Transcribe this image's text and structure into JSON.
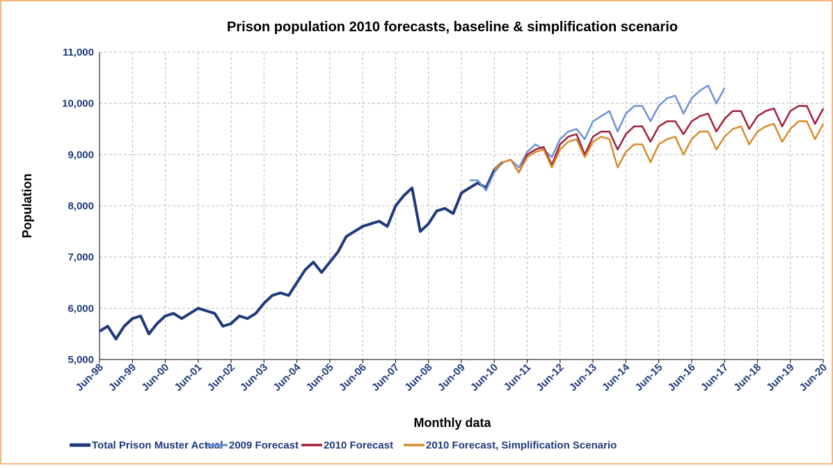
{
  "chart_data": {
    "type": "line",
    "title": "Prison population 2010 forecasts, baseline &  simplification scenario",
    "x_label": "Monthly data",
    "y_label": "Population",
    "categories": [
      "Jun-98",
      null,
      null,
      null,
      "Jun-99",
      null,
      null,
      null,
      "Jun-00",
      null,
      null,
      null,
      "Jun-01",
      null,
      null,
      null,
      "Jun-02",
      null,
      null,
      null,
      "Jun-03",
      null,
      null,
      null,
      "Jun-04",
      null,
      null,
      null,
      "Jun-05",
      null,
      null,
      null,
      "Jun-06",
      null,
      null,
      null,
      "Jun-07",
      null,
      null,
      null,
      "Jun-08",
      null,
      null,
      null,
      "Jun-09",
      null,
      null,
      null,
      "Jun-10",
      null,
      null,
      null,
      "Jun-11",
      null,
      null,
      null,
      "Jun-12",
      null,
      null,
      null,
      "Jun-13",
      null,
      null,
      null,
      "Jun-14",
      null,
      null,
      null,
      "Jun-15",
      null,
      null,
      null,
      "Jun-16",
      null,
      null,
      null,
      "Jun-17",
      null,
      null,
      null,
      "Jun-18",
      null,
      null,
      null,
      "Jun-19",
      null,
      null,
      null,
      "Jun-20"
    ],
    "series": [
      {
        "name": "Total Prison Muster Actual",
        "color": "#1f3a7a",
        "width": 4,
        "values": [
          5550,
          5650,
          5400,
          5650,
          5800,
          5850,
          5500,
          5700,
          5850,
          5900,
          5800,
          5900,
          6000,
          5950,
          5900,
          5650,
          5700,
          5850,
          5800,
          5900,
          6100,
          6250,
          6300,
          6250,
          6500,
          6750,
          6900,
          6700,
          6900,
          7100,
          7400,
          7500,
          7600,
          7650,
          7700,
          7600,
          8000,
          8200,
          8350,
          7500,
          7650,
          7900,
          7950,
          7850,
          8250,
          8350,
          8450,
          8350,
          8700,
          8850,
          null,
          null,
          null,
          null,
          null,
          null,
          null,
          null,
          null,
          null,
          null,
          null,
          null,
          null,
          null,
          null,
          null,
          null,
          null,
          null,
          null,
          null,
          null,
          null,
          null,
          null,
          null,
          null,
          null,
          null,
          null,
          null,
          null,
          null,
          null,
          null,
          null,
          null,
          null
        ]
      },
      {
        "name": "2009 Forecast",
        "color": "#6b93d6",
        "width": 2.5,
        "values": [
          null,
          null,
          null,
          null,
          null,
          null,
          null,
          null,
          null,
          null,
          null,
          null,
          null,
          null,
          null,
          null,
          null,
          null,
          null,
          null,
          null,
          null,
          null,
          null,
          null,
          null,
          null,
          null,
          null,
          null,
          null,
          null,
          null,
          null,
          null,
          null,
          null,
          null,
          null,
          null,
          null,
          null,
          null,
          null,
          null,
          8500,
          8500,
          8300,
          8650,
          8850,
          8900,
          8750,
          9050,
          9200,
          9100,
          8950,
          9300,
          9450,
          9500,
          9300,
          9650,
          9750,
          9850,
          9450,
          9800,
          9950,
          9950,
          9650,
          9950,
          10100,
          10150,
          9800,
          10100,
          10250,
          10350,
          10000,
          10300,
          null,
          null,
          null,
          null,
          null,
          null,
          null,
          null,
          null,
          null,
          null,
          null
        ]
      },
      {
        "name": "2010 Forecast",
        "color": "#a0203a",
        "width": 2.5,
        "values": [
          null,
          null,
          null,
          null,
          null,
          null,
          null,
          null,
          null,
          null,
          null,
          null,
          null,
          null,
          null,
          null,
          null,
          null,
          null,
          null,
          null,
          null,
          null,
          null,
          null,
          null,
          null,
          null,
          null,
          null,
          null,
          null,
          null,
          null,
          null,
          null,
          null,
          null,
          null,
          null,
          null,
          null,
          null,
          null,
          null,
          null,
          null,
          null,
          8700,
          8850,
          8900,
          8650,
          9000,
          9100,
          9150,
          8800,
          9200,
          9350,
          9400,
          9000,
          9350,
          9450,
          9450,
          9100,
          9400,
          9550,
          9550,
          9250,
          9550,
          9650,
          9650,
          9400,
          9650,
          9750,
          9800,
          9450,
          9700,
          9850,
          9850,
          9500,
          9750,
          9850,
          9900,
          9550,
          9850,
          9950,
          9950,
          9600,
          9900
        ]
      },
      {
        "name": "2010 Forecast, Simplification Scenario",
        "color": "#d98b2b",
        "width": 2.5,
        "values": [
          null,
          null,
          null,
          null,
          null,
          null,
          null,
          null,
          null,
          null,
          null,
          null,
          null,
          null,
          null,
          null,
          null,
          null,
          null,
          null,
          null,
          null,
          null,
          null,
          null,
          null,
          null,
          null,
          null,
          null,
          null,
          null,
          null,
          null,
          null,
          null,
          null,
          null,
          null,
          null,
          null,
          null,
          null,
          null,
          null,
          null,
          null,
          null,
          8700,
          8850,
          8900,
          8650,
          8950,
          9050,
          9100,
          8750,
          9100,
          9250,
          9300,
          8950,
          9250,
          9350,
          9300,
          8750,
          9050,
          9200,
          9200,
          8850,
          9200,
          9300,
          9350,
          9000,
          9300,
          9450,
          9450,
          9100,
          9350,
          9500,
          9550,
          9200,
          9450,
          9550,
          9600,
          9250,
          9500,
          9650,
          9650,
          9300,
          9600
        ]
      }
    ],
    "ylim": [
      5000,
      11000
    ],
    "yticks": [
      {
        "value": 5000,
        "label": "5,000"
      },
      {
        "value": 6000,
        "label": "6,000"
      },
      {
        "value": 7000,
        "label": "7,000"
      },
      {
        "value": 8000,
        "label": "8,000"
      },
      {
        "value": 9000,
        "label": "9,000"
      },
      {
        "value": 10000,
        "label": "10,000"
      },
      {
        "value": 11000,
        "label": "11,000"
      }
    ],
    "grid": true,
    "legend": "bottom"
  }
}
